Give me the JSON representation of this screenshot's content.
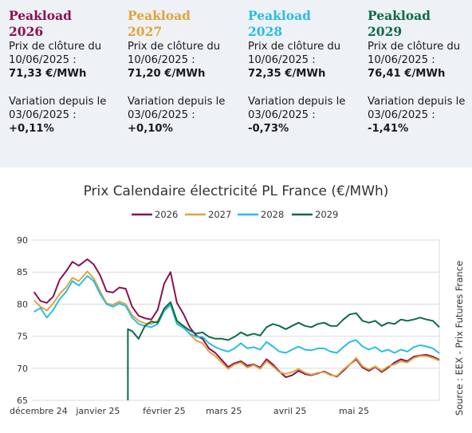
{
  "cards": [
    {
      "title1": "Peakload",
      "year": "2026",
      "color": "#8b1052",
      "close_label1": "Prix de clôture du",
      "close_label2": "10/06/2025 :",
      "close_value": "71,33 €/MWh",
      "var_label1": "Variation depuis le",
      "var_label2": "03/06/2025 :",
      "var_value": "+0,11%"
    },
    {
      "title1": "Peakload",
      "year": "2027",
      "color": "#e0a43a",
      "close_label1": "Prix de clôture du",
      "close_label2": "10/06/2025 :",
      "close_value": "71,20 €/MWh",
      "var_label1": "Variation depuis le",
      "var_label2": "03/06/2025 :",
      "var_value": "+0,10%"
    },
    {
      "title1": "Peakload",
      "year": "2028",
      "color": "#29bde6",
      "close_label1": "Prix de clôture du",
      "close_label2": "10/06/2025 :",
      "close_value": "72,35 €/MWh",
      "var_label1": "Variation depuis le",
      "var_label2": "03/06/2025 :",
      "var_value": "-0,73%"
    },
    {
      "title1": "Peakload",
      "year": "2029",
      "color": "#0d6b47",
      "close_label1": "Prix de clôture du",
      "close_label2": "10/06/2025 :",
      "close_value": "76,41 €/MWh",
      "var_label1": "Variation depuis le",
      "var_label2": "03/06/2025 :",
      "var_value": "-1,41%"
    }
  ],
  "chart_data": {
    "type": "line",
    "title": "Prix Calendaire électricité PL France (€/MWh)",
    "ylim": [
      65,
      90
    ],
    "yticks": [
      65,
      70,
      75,
      80,
      85,
      90
    ],
    "x_tick_labels": [
      "décembre 24",
      "janvier 25",
      "février 25",
      "mars 25",
      "avril 25",
      "mai 25"
    ],
    "x_tick_dates": [
      "2024-12-01",
      "2025-01-01",
      "2025-02-01",
      "2025-03-01",
      "2025-04-01",
      "2025-05-01"
    ],
    "x_range": [
      "2024-12-01",
      "2025-06-10"
    ],
    "grid": "horizontal",
    "legend_position": "top",
    "source_note": "Source : EEX - Prix Futures France",
    "series": [
      {
        "name": "2026",
        "color": "#8b1052",
        "points": [
          [
            "2024-12-02",
            81.9
          ],
          [
            "2024-12-05",
            80.5
          ],
          [
            "2024-12-08",
            80.2
          ],
          [
            "2024-12-11",
            81.2
          ],
          [
            "2024-12-14",
            83.8
          ],
          [
            "2024-12-17",
            85.1
          ],
          [
            "2024-12-20",
            86.6
          ],
          [
            "2024-12-23",
            86.0
          ],
          [
            "2024-12-27",
            87.0
          ],
          [
            "2024-12-30",
            86.2
          ],
          [
            "2025-01-02",
            84.5
          ],
          [
            "2025-01-05",
            82.0
          ],
          [
            "2025-01-08",
            81.8
          ],
          [
            "2025-01-11",
            82.6
          ],
          [
            "2025-01-14",
            82.4
          ],
          [
            "2025-01-17",
            79.6
          ],
          [
            "2025-01-20",
            78.2
          ],
          [
            "2025-01-23",
            77.8
          ],
          [
            "2025-01-26",
            77.6
          ],
          [
            "2025-01-29",
            79.1
          ],
          [
            "2025-02-01",
            83.2
          ],
          [
            "2025-02-04",
            85.0
          ],
          [
            "2025-02-07",
            80.2
          ],
          [
            "2025-02-10",
            78.5
          ],
          [
            "2025-02-13",
            76.4
          ],
          [
            "2025-02-16",
            75.1
          ],
          [
            "2025-02-19",
            74.6
          ],
          [
            "2025-02-22",
            73.1
          ],
          [
            "2025-02-25",
            72.4
          ],
          [
            "2025-02-28",
            71.3
          ],
          [
            "2025-03-03",
            70.2
          ],
          [
            "2025-03-06",
            70.8
          ],
          [
            "2025-03-09",
            71.1
          ],
          [
            "2025-03-12",
            70.4
          ],
          [
            "2025-03-15",
            70.6
          ],
          [
            "2025-03-18",
            70.1
          ],
          [
            "2025-03-21",
            71.4
          ],
          [
            "2025-03-24",
            70.6
          ],
          [
            "2025-03-27",
            69.5
          ],
          [
            "2025-03-30",
            68.6
          ],
          [
            "2025-04-02",
            68.9
          ],
          [
            "2025-04-05",
            69.6
          ],
          [
            "2025-04-08",
            69.1
          ],
          [
            "2025-04-11",
            68.9
          ],
          [
            "2025-04-14",
            69.2
          ],
          [
            "2025-04-17",
            69.5
          ],
          [
            "2025-04-20",
            69.0
          ],
          [
            "2025-04-23",
            68.7
          ],
          [
            "2025-04-26",
            69.6
          ],
          [
            "2025-04-29",
            70.6
          ],
          [
            "2025-05-02",
            71.4
          ],
          [
            "2025-05-05",
            70.1
          ],
          [
            "2025-05-08",
            69.6
          ],
          [
            "2025-05-11",
            70.2
          ],
          [
            "2025-05-14",
            69.4
          ],
          [
            "2025-05-17",
            70.1
          ],
          [
            "2025-05-20",
            70.9
          ],
          [
            "2025-05-23",
            71.4
          ],
          [
            "2025-05-26",
            71.1
          ],
          [
            "2025-05-29",
            71.8
          ],
          [
            "2025-06-01",
            72.0
          ],
          [
            "2025-06-04",
            72.1
          ],
          [
            "2025-06-07",
            71.8
          ],
          [
            "2025-06-10",
            71.33
          ]
        ]
      },
      {
        "name": "2027",
        "color": "#e0a43a",
        "points": [
          [
            "2024-12-02",
            80.6
          ],
          [
            "2024-12-05",
            79.6
          ],
          [
            "2024-12-08",
            79.0
          ],
          [
            "2024-12-11",
            80.1
          ],
          [
            "2024-12-14",
            81.6
          ],
          [
            "2024-12-17",
            82.6
          ],
          [
            "2024-12-20",
            84.1
          ],
          [
            "2024-12-23",
            83.6
          ],
          [
            "2024-12-27",
            85.1
          ],
          [
            "2024-12-30",
            84.0
          ],
          [
            "2025-01-02",
            82.0
          ],
          [
            "2025-01-05",
            80.1
          ],
          [
            "2025-01-08",
            79.9
          ],
          [
            "2025-01-11",
            80.4
          ],
          [
            "2025-01-14",
            80.0
          ],
          [
            "2025-01-17",
            78.3
          ],
          [
            "2025-01-20",
            77.4
          ],
          [
            "2025-01-23",
            77.0
          ],
          [
            "2025-01-26",
            76.9
          ],
          [
            "2025-01-29",
            77.4
          ],
          [
            "2025-02-01",
            79.2
          ],
          [
            "2025-02-04",
            80.1
          ],
          [
            "2025-02-07",
            77.1
          ],
          [
            "2025-02-10",
            76.6
          ],
          [
            "2025-02-13",
            75.3
          ],
          [
            "2025-02-16",
            74.3
          ],
          [
            "2025-02-19",
            73.9
          ],
          [
            "2025-02-22",
            72.6
          ],
          [
            "2025-02-25",
            71.9
          ],
          [
            "2025-02-28",
            70.9
          ],
          [
            "2025-03-03",
            69.9
          ],
          [
            "2025-03-06",
            70.6
          ],
          [
            "2025-03-09",
            70.9
          ],
          [
            "2025-03-12",
            70.1
          ],
          [
            "2025-03-15",
            70.5
          ],
          [
            "2025-03-18",
            69.9
          ],
          [
            "2025-03-21",
            71.1
          ],
          [
            "2025-03-24",
            70.3
          ],
          [
            "2025-03-27",
            69.4
          ],
          [
            "2025-03-30",
            69.1
          ],
          [
            "2025-04-02",
            69.4
          ],
          [
            "2025-04-05",
            69.9
          ],
          [
            "2025-04-08",
            69.3
          ],
          [
            "2025-04-11",
            69.0
          ],
          [
            "2025-04-14",
            69.3
          ],
          [
            "2025-04-17",
            69.4
          ],
          [
            "2025-04-20",
            68.9
          ],
          [
            "2025-04-23",
            68.8
          ],
          [
            "2025-04-26",
            69.8
          ],
          [
            "2025-04-29",
            70.6
          ],
          [
            "2025-05-02",
            71.6
          ],
          [
            "2025-05-05",
            70.3
          ],
          [
            "2025-05-08",
            69.8
          ],
          [
            "2025-05-11",
            70.3
          ],
          [
            "2025-05-14",
            69.6
          ],
          [
            "2025-05-17",
            70.3
          ],
          [
            "2025-05-20",
            70.6
          ],
          [
            "2025-05-23",
            71.1
          ],
          [
            "2025-05-26",
            70.9
          ],
          [
            "2025-05-29",
            71.6
          ],
          [
            "2025-06-01",
            71.9
          ],
          [
            "2025-06-04",
            71.9
          ],
          [
            "2025-06-07",
            71.6
          ],
          [
            "2025-06-10",
            71.2
          ]
        ]
      },
      {
        "name": "2028",
        "color": "#29bde6",
        "points": [
          [
            "2024-12-02",
            78.8
          ],
          [
            "2024-12-05",
            79.4
          ],
          [
            "2024-12-08",
            77.9
          ],
          [
            "2024-12-11",
            79.1
          ],
          [
            "2024-12-14",
            80.8
          ],
          [
            "2024-12-17",
            81.9
          ],
          [
            "2024-12-20",
            83.6
          ],
          [
            "2024-12-23",
            82.9
          ],
          [
            "2024-12-27",
            84.4
          ],
          [
            "2024-12-30",
            83.6
          ],
          [
            "2025-01-02",
            81.6
          ],
          [
            "2025-01-05",
            80.0
          ],
          [
            "2025-01-08",
            79.6
          ],
          [
            "2025-01-11",
            80.1
          ],
          [
            "2025-01-14",
            79.7
          ],
          [
            "2025-01-17",
            77.9
          ],
          [
            "2025-01-20",
            76.9
          ],
          [
            "2025-01-23",
            76.6
          ],
          [
            "2025-01-26",
            76.4
          ],
          [
            "2025-01-29",
            76.9
          ],
          [
            "2025-02-01",
            78.9
          ],
          [
            "2025-02-04",
            79.9
          ],
          [
            "2025-02-07",
            76.9
          ],
          [
            "2025-02-10",
            76.3
          ],
          [
            "2025-02-13",
            75.4
          ],
          [
            "2025-02-16",
            74.9
          ],
          [
            "2025-02-19",
            74.9
          ],
          [
            "2025-02-22",
            73.9
          ],
          [
            "2025-02-25",
            73.3
          ],
          [
            "2025-02-28",
            72.9
          ],
          [
            "2025-03-03",
            72.6
          ],
          [
            "2025-03-06",
            73.1
          ],
          [
            "2025-03-09",
            73.9
          ],
          [
            "2025-03-12",
            73.1
          ],
          [
            "2025-03-15",
            73.3
          ],
          [
            "2025-03-18",
            72.9
          ],
          [
            "2025-03-21",
            74.1
          ],
          [
            "2025-03-24",
            73.4
          ],
          [
            "2025-03-27",
            72.6
          ],
          [
            "2025-03-30",
            72.4
          ],
          [
            "2025-04-02",
            72.9
          ],
          [
            "2025-04-05",
            73.4
          ],
          [
            "2025-04-08",
            72.9
          ],
          [
            "2025-04-11",
            72.8
          ],
          [
            "2025-04-14",
            73.1
          ],
          [
            "2025-04-17",
            73.1
          ],
          [
            "2025-04-20",
            72.6
          ],
          [
            "2025-04-23",
            72.4
          ],
          [
            "2025-04-26",
            73.3
          ],
          [
            "2025-04-29",
            74.1
          ],
          [
            "2025-05-02",
            74.4
          ],
          [
            "2025-05-05",
            73.4
          ],
          [
            "2025-05-08",
            72.9
          ],
          [
            "2025-05-11",
            73.3
          ],
          [
            "2025-05-14",
            72.6
          ],
          [
            "2025-05-17",
            72.9
          ],
          [
            "2025-05-20",
            72.4
          ],
          [
            "2025-05-23",
            72.9
          ],
          [
            "2025-05-26",
            72.6
          ],
          [
            "2025-05-29",
            73.3
          ],
          [
            "2025-06-01",
            73.6
          ],
          [
            "2025-06-04",
            73.4
          ],
          [
            "2025-06-07",
            73.1
          ],
          [
            "2025-06-10",
            72.35
          ]
        ]
      },
      {
        "name": "2029",
        "color": "#0d6b47",
        "points": [
          [
            "2025-01-15",
            65.0
          ],
          [
            "2025-01-15",
            76.1
          ],
          [
            "2025-01-17",
            75.8
          ],
          [
            "2025-01-20",
            74.6
          ],
          [
            "2025-01-23",
            76.6
          ],
          [
            "2025-01-26",
            77.3
          ],
          [
            "2025-01-29",
            77.1
          ],
          [
            "2025-02-01",
            79.3
          ],
          [
            "2025-02-04",
            80.3
          ],
          [
            "2025-02-07",
            77.4
          ],
          [
            "2025-02-10",
            76.6
          ],
          [
            "2025-02-13",
            75.9
          ],
          [
            "2025-02-16",
            75.4
          ],
          [
            "2025-02-19",
            75.6
          ],
          [
            "2025-02-22",
            74.9
          ],
          [
            "2025-02-25",
            74.6
          ],
          [
            "2025-02-28",
            74.6
          ],
          [
            "2025-03-03",
            74.4
          ],
          [
            "2025-03-06",
            74.9
          ],
          [
            "2025-03-09",
            75.6
          ],
          [
            "2025-03-12",
            75.1
          ],
          [
            "2025-03-15",
            75.4
          ],
          [
            "2025-03-18",
            75.1
          ],
          [
            "2025-03-21",
            76.4
          ],
          [
            "2025-03-24",
            76.9
          ],
          [
            "2025-03-27",
            76.6
          ],
          [
            "2025-03-30",
            76.1
          ],
          [
            "2025-04-02",
            76.6
          ],
          [
            "2025-04-05",
            77.1
          ],
          [
            "2025-04-08",
            76.6
          ],
          [
            "2025-04-11",
            76.4
          ],
          [
            "2025-04-14",
            76.9
          ],
          [
            "2025-04-17",
            77.1
          ],
          [
            "2025-04-20",
            76.6
          ],
          [
            "2025-04-23",
            76.6
          ],
          [
            "2025-04-26",
            77.6
          ],
          [
            "2025-04-29",
            78.4
          ],
          [
            "2025-05-02",
            78.6
          ],
          [
            "2025-05-05",
            77.4
          ],
          [
            "2025-05-08",
            77.1
          ],
          [
            "2025-05-11",
            77.4
          ],
          [
            "2025-05-14",
            76.6
          ],
          [
            "2025-05-17",
            77.1
          ],
          [
            "2025-05-20",
            76.9
          ],
          [
            "2025-05-23",
            77.6
          ],
          [
            "2025-05-26",
            77.4
          ],
          [
            "2025-05-29",
            77.6
          ],
          [
            "2025-06-01",
            77.9
          ],
          [
            "2025-06-04",
            77.6
          ],
          [
            "2025-06-07",
            77.4
          ],
          [
            "2025-06-10",
            76.41
          ]
        ]
      }
    ]
  }
}
